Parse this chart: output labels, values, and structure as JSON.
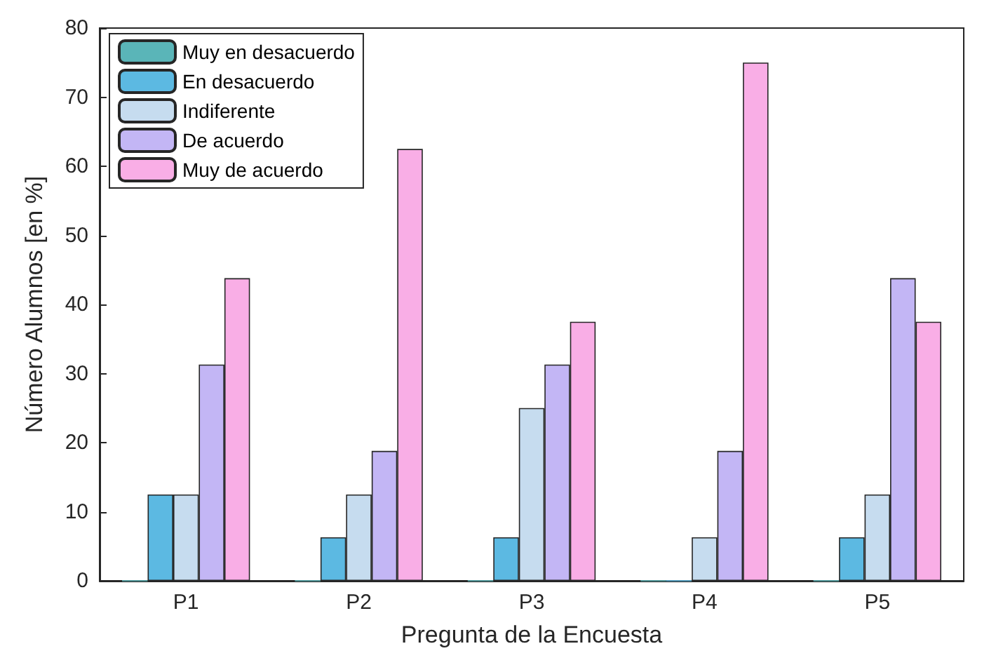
{
  "chart_data": {
    "type": "bar",
    "xlabel": "Pregunta de la Encuesta",
    "ylabel": "Número Alumnos [en %]",
    "categories": [
      "P1",
      "P2",
      "P3",
      "P4",
      "P5"
    ],
    "series": [
      {
        "name": "Muy en desacuerdo",
        "color": "#5ab5b8",
        "values": [
          0,
          0,
          0,
          0,
          0
        ]
      },
      {
        "name": "En desacuerdo",
        "color": "#5cb9e2",
        "values": [
          12.5,
          6.3,
          6.3,
          0,
          6.3
        ]
      },
      {
        "name": "Indiferente",
        "color": "#c6dcef",
        "values": [
          12.5,
          12.5,
          25,
          6.3,
          12.5
        ]
      },
      {
        "name": "De acuerdo",
        "color": "#c3b6f5",
        "values": [
          31.3,
          18.8,
          31.3,
          18.8,
          43.8
        ]
      },
      {
        "name": "Muy de acuerdo",
        "color": "#f9aee6",
        "values": [
          43.8,
          62.5,
          37.5,
          75,
          37.5
        ]
      }
    ],
    "ylim": [
      0,
      80
    ],
    "yticks": [
      0,
      10,
      20,
      30,
      40,
      50,
      60,
      70,
      80
    ],
    "grid": false,
    "legend": "top left"
  }
}
